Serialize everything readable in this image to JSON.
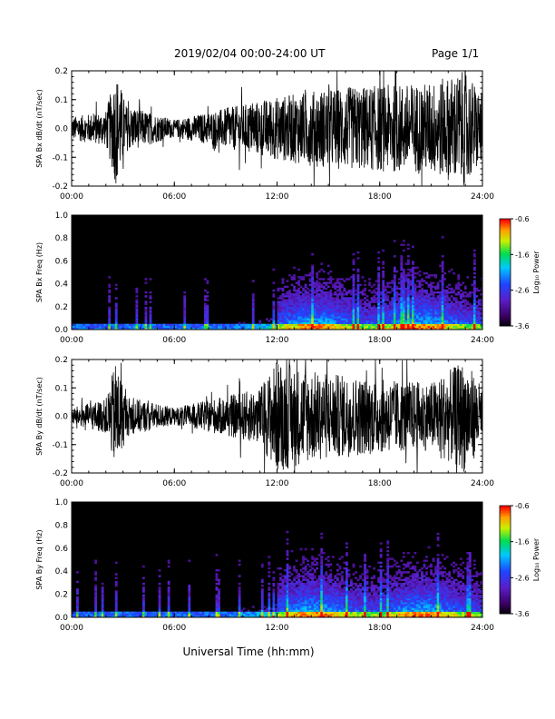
{
  "header": {
    "title": "2019/02/04  00:00-24:00 UT",
    "page": "Page 1/1"
  },
  "xaxis_title": "Universal Time (hh:mm)",
  "colorbar": {
    "label": "Log₁₀ Power",
    "ticks": [
      "-0.6",
      "-1.6",
      "-2.6",
      "-3.6"
    ]
  },
  "chart_data": [
    {
      "type": "line",
      "ylabel": "SPA Bx dB/dt (nT/sec)",
      "xticks": [
        "00:00",
        "06:00",
        "12:00",
        "18:00",
        "24:00"
      ],
      "yticks": [
        "0.2",
        "0.1",
        "0.0",
        "-0.1",
        "-0.2"
      ],
      "xlim": [
        0,
        24
      ],
      "ylim": [
        -0.2,
        0.2
      ],
      "amplitude_envelope": [
        {
          "t": 0,
          "a": 0.04
        },
        {
          "t": 2,
          "a": 0.06
        },
        {
          "t": 2.6,
          "a": 0.2
        },
        {
          "t": 3.2,
          "a": 0.08
        },
        {
          "t": 6,
          "a": 0.03
        },
        {
          "t": 9,
          "a": 0.07
        },
        {
          "t": 12,
          "a": 0.11
        },
        {
          "t": 15,
          "a": 0.14
        },
        {
          "t": 18,
          "a": 0.15
        },
        {
          "t": 21,
          "a": 0.16
        },
        {
          "t": 23,
          "a": 0.2
        },
        {
          "t": 24,
          "a": 0.12
        }
      ]
    },
    {
      "type": "heatmap",
      "ylabel": "SPA Bx Freq (Hz)",
      "xticks": [
        "00:00",
        "06:00",
        "12:00",
        "18:00",
        "24:00"
      ],
      "yticks": [
        "1.0",
        "0.8",
        "0.6",
        "0.4",
        "0.2",
        "0.0"
      ],
      "xlim": [
        0,
        24
      ],
      "ylim": [
        0,
        1
      ],
      "zlim": [
        -3.6,
        -0.6
      ]
    },
    {
      "type": "line",
      "ylabel": "SPA By dB/dt (nT/sec)",
      "xticks": [
        "00:00",
        "06:00",
        "12:00",
        "18:00",
        "24:00"
      ],
      "yticks": [
        "0.2",
        "0.1",
        "0.0",
        "-0.1",
        "-0.2"
      ],
      "xlim": [
        0,
        24
      ],
      "ylim": [
        -0.2,
        0.2
      ],
      "amplitude_envelope": [
        {
          "t": 0,
          "a": 0.03
        },
        {
          "t": 2,
          "a": 0.06
        },
        {
          "t": 2.6,
          "a": 0.2
        },
        {
          "t": 3.2,
          "a": 0.07
        },
        {
          "t": 6,
          "a": 0.03
        },
        {
          "t": 9,
          "a": 0.07
        },
        {
          "t": 11,
          "a": 0.1
        },
        {
          "t": 12,
          "a": 0.2
        },
        {
          "t": 14,
          "a": 0.16
        },
        {
          "t": 18,
          "a": 0.13
        },
        {
          "t": 21,
          "a": 0.12
        },
        {
          "t": 23,
          "a": 0.2
        },
        {
          "t": 24,
          "a": 0.1
        }
      ]
    },
    {
      "type": "heatmap",
      "ylabel": "SPA By Freq (Hz)",
      "xticks": [
        "00:00",
        "06:00",
        "12:00",
        "18:00",
        "24:00"
      ],
      "yticks": [
        "1.0",
        "0.8",
        "0.6",
        "0.4",
        "0.2",
        "0.0"
      ],
      "xlim": [
        0,
        24
      ],
      "ylim": [
        0,
        1
      ],
      "zlim": [
        -3.6,
        -0.6
      ]
    }
  ]
}
